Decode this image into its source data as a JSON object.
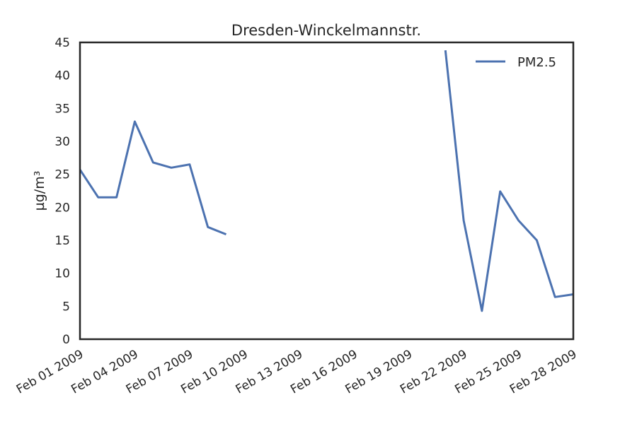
{
  "chart_data": {
    "type": "line",
    "title": "Dresden-Winckelmannstr.",
    "xlabel": "",
    "ylabel": "µg/m³",
    "xlim": [
      "2009-02-01",
      "2009-02-28"
    ],
    "ylim": [
      0,
      45
    ],
    "y_ticks": [
      0,
      5,
      10,
      15,
      20,
      25,
      30,
      35,
      40,
      45
    ],
    "x_ticks": [
      {
        "date": "2009-02-01",
        "label": "Feb 01 2009"
      },
      {
        "date": "2009-02-04",
        "label": "Feb 04 2009"
      },
      {
        "date": "2009-02-07",
        "label": "Feb 07 2009"
      },
      {
        "date": "2009-02-10",
        "label": "Feb 10 2009"
      },
      {
        "date": "2009-02-13",
        "label": "Feb 13 2009"
      },
      {
        "date": "2009-02-16",
        "label": "Feb 16 2009"
      },
      {
        "date": "2009-02-19",
        "label": "Feb 19 2009"
      },
      {
        "date": "2009-02-22",
        "label": "Feb 22 2009"
      },
      {
        "date": "2009-02-25",
        "label": "Feb 25 2009"
      },
      {
        "date": "2009-02-28",
        "label": "Feb 28 2009"
      }
    ],
    "grid": false,
    "legend_position": "top-right",
    "series": [
      {
        "name": "PM2.5",
        "color": "#4c72b0",
        "x": [
          "2009-02-01",
          "2009-02-02",
          "2009-02-03",
          "2009-02-04",
          "2009-02-05",
          "2009-02-06",
          "2009-02-07",
          "2009-02-08",
          "2009-02-09",
          "2009-02-10",
          "2009-02-11",
          "2009-02-12",
          "2009-02-13",
          "2009-02-14",
          "2009-02-15",
          "2009-02-16",
          "2009-02-17",
          "2009-02-18",
          "2009-02-19",
          "2009-02-20",
          "2009-02-21",
          "2009-02-22",
          "2009-02-23",
          "2009-02-24",
          "2009-02-25",
          "2009-02-26",
          "2009-02-27",
          "2009-02-28"
        ],
        "y": [
          25.7,
          21.5,
          21.5,
          33.0,
          26.8,
          26.0,
          26.5,
          17.0,
          15.9,
          null,
          null,
          null,
          null,
          null,
          null,
          null,
          null,
          null,
          null,
          null,
          43.8,
          18.0,
          4.3,
          22.4,
          18.0,
          15.0,
          6.4,
          6.8
        ]
      }
    ]
  }
}
